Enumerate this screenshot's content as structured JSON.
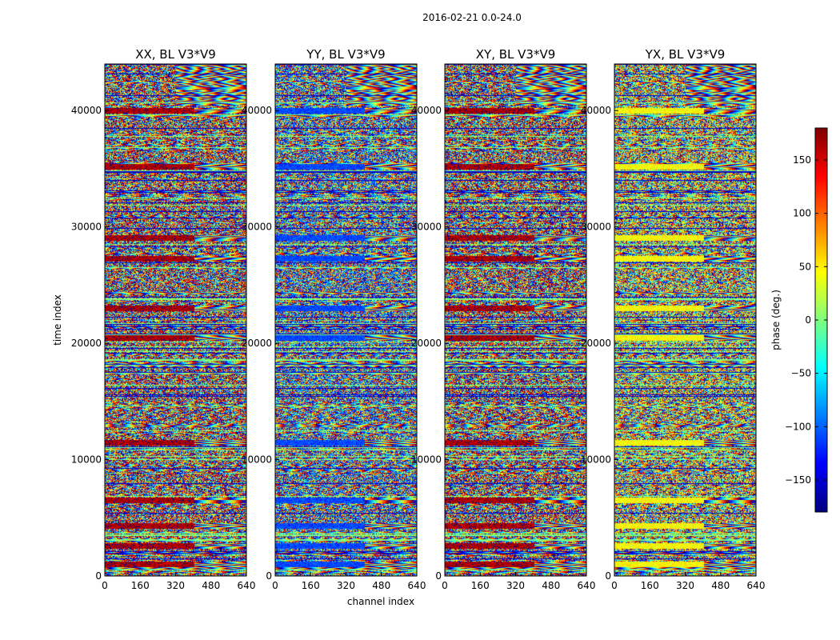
{
  "chart_data": {
    "type": "heatmap",
    "suptitle": "2016-02-21 0.0-24.0",
    "xlabel": "channel index",
    "ylabel": "time index",
    "x_range": [
      0,
      640
    ],
    "y_range": [
      0,
      44000
    ],
    "x_ticks": [
      "0",
      "160",
      "320",
      "480",
      "640"
    ],
    "y_ticks": [
      "0",
      "10000",
      "20000",
      "30000",
      "40000"
    ],
    "y_tick_values": [
      0,
      10000,
      20000,
      30000,
      40000
    ],
    "x_tick_values": [
      0,
      160,
      320,
      480,
      640
    ],
    "panels": [
      {
        "title": "XX, BL V3*V9",
        "bias": 165
      },
      {
        "title": "YY, BL V3*V9",
        "bias": -110
      },
      {
        "title": "XY, BL V3*V9",
        "bias": 165
      },
      {
        "title": "YX, BL V3*V9",
        "bias": 45
      }
    ],
    "band_rows": [
      1000,
      2600,
      4300,
      6500,
      11500,
      20500,
      23000,
      27300,
      29100,
      35200,
      40000
    ],
    "colorbar": {
      "label": "phase (deg.)",
      "range": [
        -180,
        180
      ],
      "ticks": [
        "150",
        "100",
        "50",
        "0",
        "−50",
        "−100",
        "−150"
      ],
      "tick_values": [
        150,
        100,
        50,
        0,
        -50,
        -100,
        -150
      ],
      "colormap": "jet"
    }
  }
}
